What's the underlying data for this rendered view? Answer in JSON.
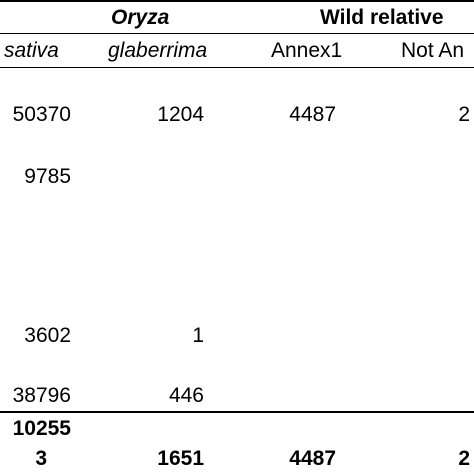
{
  "header": {
    "group_oryza": "Oryza",
    "group_wild": "Wild relative"
  },
  "columns": {
    "sativa": "sativa",
    "glaberrima": "glaberrima",
    "annex1": "Annex1",
    "not_annex": "Not An"
  },
  "rows": [
    {
      "sativa": "50370",
      "glaberrima": "1204",
      "annex1": "4487",
      "not_annex": "2"
    },
    {
      "sativa": "9785",
      "glaberrima": "",
      "annex1": "",
      "not_annex": ""
    },
    {
      "sativa": "3602",
      "glaberrima": "1",
      "annex1": "",
      "not_annex": ""
    },
    {
      "sativa": "38796",
      "glaberrima": "446",
      "annex1": "",
      "not_annex": ""
    }
  ],
  "total": {
    "sativa_line1": "10255",
    "sativa_line2": "3",
    "glaberrima": "1651",
    "annex1": "4487",
    "not_annex": "2"
  },
  "colors": {
    "text": "#000000",
    "background": "#ffffff",
    "rule": "#000000"
  }
}
